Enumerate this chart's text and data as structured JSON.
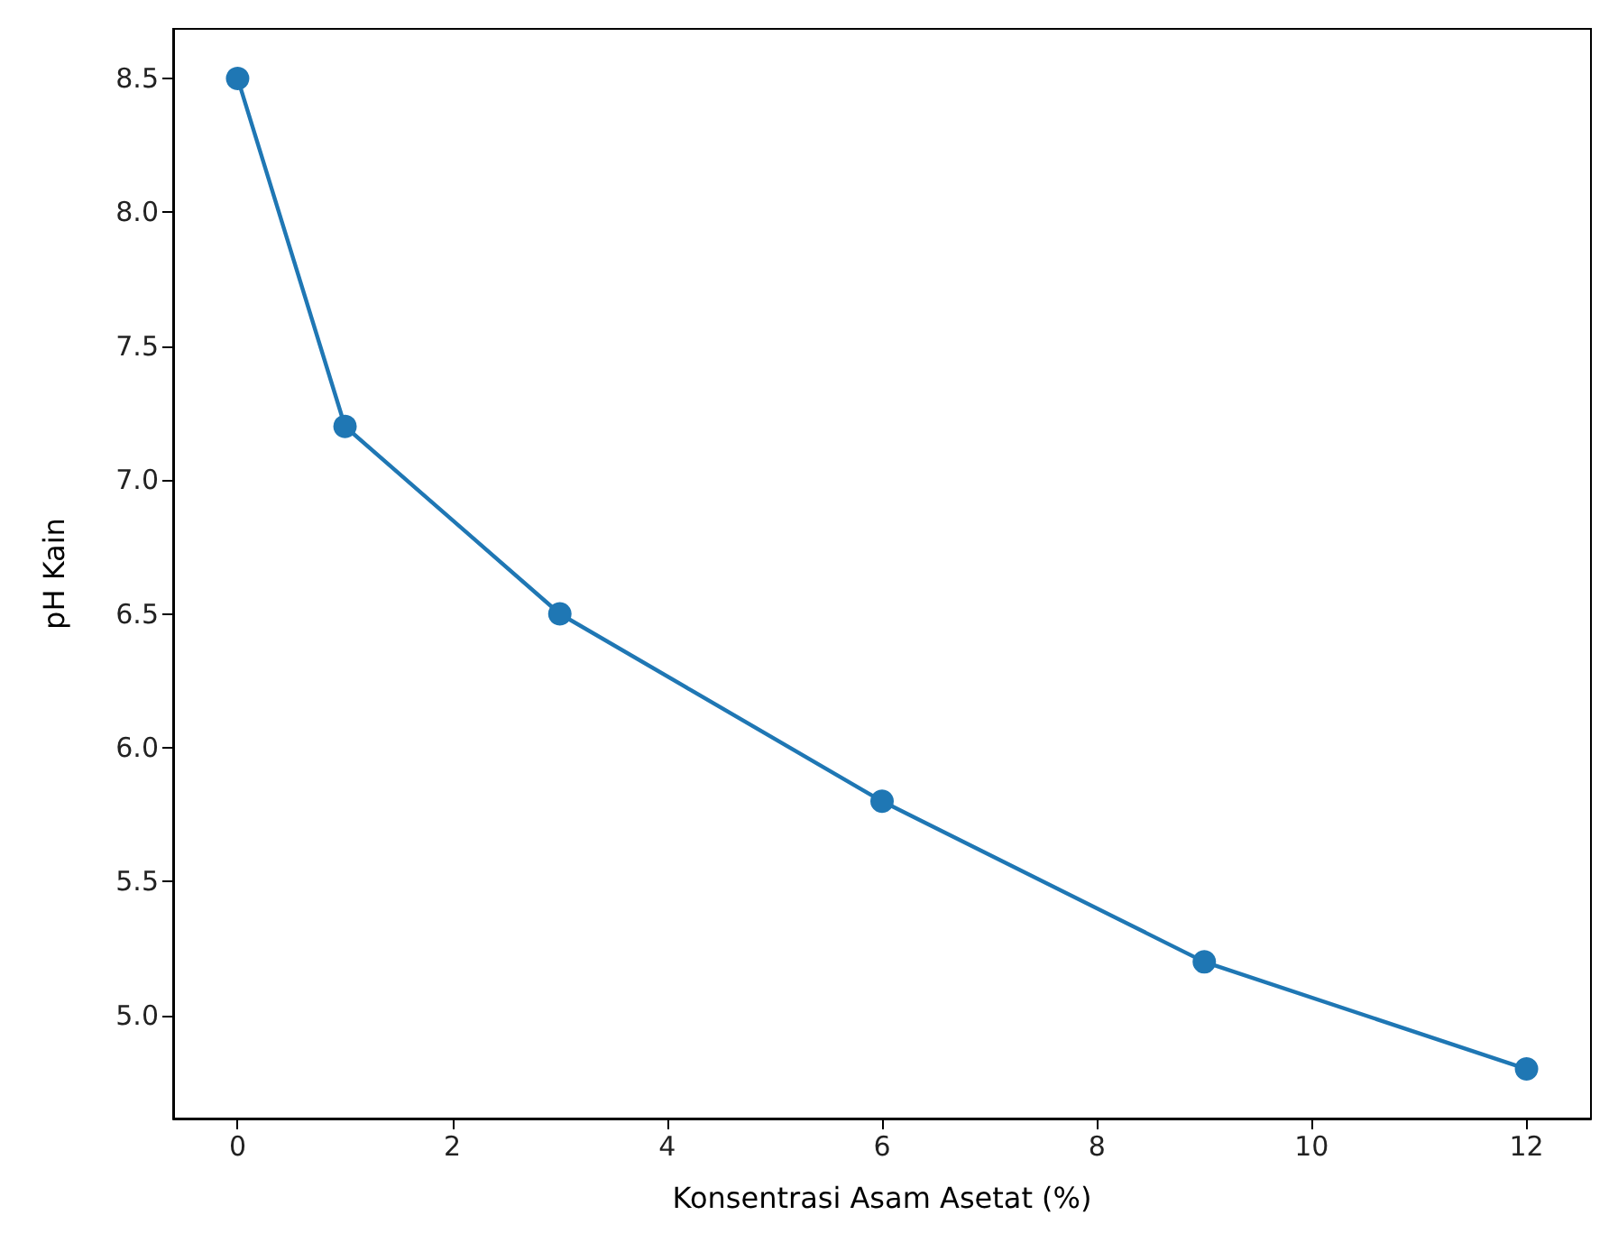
{
  "chart_data": {
    "type": "line",
    "xlabel": "Konsentrasi Asam Asetat (%)",
    "ylabel": "pH Kain",
    "x": [
      0,
      1,
      3,
      6,
      9,
      12
    ],
    "series": [
      {
        "color": "#1f77b4",
        "values": [
          8.5,
          7.2,
          6.5,
          5.8,
          5.2,
          4.8
        ]
      }
    ],
    "xlim": [
      -0.6,
      12.6
    ],
    "xticks": [
      0,
      2,
      4,
      6,
      8,
      10,
      12
    ],
    "ylim": [
      4.615,
      8.685
    ],
    "yticks": [
      {
        "value": 5,
        "label": "5.0"
      },
      5.5,
      {
        "value": 6,
        "label": "6.0"
      },
      6.5,
      {
        "value": 7,
        "label": "7.0"
      },
      7.5,
      {
        "value": 8,
        "label": "8.0"
      },
      8.5
    ],
    "marker": "circle",
    "line_style": "solid"
  }
}
